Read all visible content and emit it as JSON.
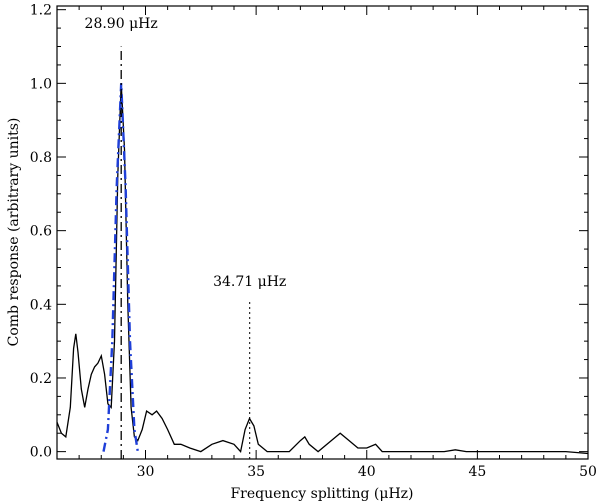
{
  "chart_data": {
    "type": "line",
    "title": "",
    "xlabel": "Frequency splitting (μHz)",
    "ylabel": "Comb response (arbitrary units)",
    "xlim": [
      26,
      50
    ],
    "ylim": [
      -0.02,
      1.21
    ],
    "xticks": [
      30,
      35,
      40,
      45,
      50
    ],
    "yticks": [
      0.0,
      0.2,
      0.4,
      0.6,
      0.8,
      1.0,
      1.2
    ],
    "ytick_labels": [
      "0.0",
      "0.2",
      "0.4",
      "0.6",
      "0.8",
      "1.0",
      "1.2"
    ],
    "grid": false,
    "legend": "none",
    "series": [
      {
        "style": "solid",
        "color": "#000000",
        "points": [
          [
            26.0,
            0.08
          ],
          [
            26.2,
            0.05
          ],
          [
            26.4,
            0.04
          ],
          [
            26.6,
            0.12
          ],
          [
            26.75,
            0.28
          ],
          [
            26.85,
            0.32
          ],
          [
            26.95,
            0.27
          ],
          [
            27.1,
            0.17
          ],
          [
            27.25,
            0.12
          ],
          [
            27.4,
            0.17
          ],
          [
            27.55,
            0.21
          ],
          [
            27.7,
            0.23
          ],
          [
            27.85,
            0.24
          ],
          [
            28.0,
            0.26
          ],
          [
            28.15,
            0.21
          ],
          [
            28.3,
            0.13
          ],
          [
            28.45,
            0.12
          ],
          [
            28.6,
            0.3
          ],
          [
            28.75,
            0.75
          ],
          [
            28.9,
            1.0
          ],
          [
            29.05,
            0.82
          ],
          [
            29.2,
            0.4
          ],
          [
            29.35,
            0.12
          ],
          [
            29.5,
            0.04
          ],
          [
            29.65,
            0.03
          ],
          [
            29.85,
            0.06
          ],
          [
            30.05,
            0.11
          ],
          [
            30.3,
            0.1
          ],
          [
            30.5,
            0.11
          ],
          [
            30.75,
            0.09
          ],
          [
            31.0,
            0.06
          ],
          [
            31.3,
            0.02
          ],
          [
            31.6,
            0.02
          ],
          [
            32.0,
            0.01
          ],
          [
            32.5,
            0.0
          ],
          [
            33.0,
            0.02
          ],
          [
            33.5,
            0.03
          ],
          [
            34.0,
            0.02
          ],
          [
            34.3,
            0.0
          ],
          [
            34.5,
            0.06
          ],
          [
            34.7,
            0.09
          ],
          [
            34.9,
            0.07
          ],
          [
            35.1,
            0.02
          ],
          [
            35.5,
            0.0
          ],
          [
            36.0,
            0.0
          ],
          [
            36.5,
            0.0
          ],
          [
            37.0,
            0.03
          ],
          [
            37.2,
            0.04
          ],
          [
            37.4,
            0.02
          ],
          [
            37.8,
            0.0
          ],
          [
            38.4,
            0.03
          ],
          [
            38.8,
            0.05
          ],
          [
            39.2,
            0.03
          ],
          [
            39.6,
            0.01
          ],
          [
            40.0,
            0.01
          ],
          [
            40.4,
            0.02
          ],
          [
            40.7,
            0.0
          ],
          [
            41.5,
            0.0
          ],
          [
            42.5,
            0.0
          ],
          [
            43.5,
            0.0
          ],
          [
            44.0,
            0.005
          ],
          [
            44.5,
            0.0
          ],
          [
            45.0,
            0.0
          ],
          [
            46.0,
            0.0
          ],
          [
            47.0,
            0.0
          ],
          [
            48.0,
            0.0
          ],
          [
            49.0,
            0.0
          ],
          [
            50.0,
            -0.005
          ]
        ]
      },
      {
        "style": "dash-dot",
        "color": "#1f3fd8",
        "points": [
          [
            28.1,
            0.0
          ],
          [
            28.3,
            0.06
          ],
          [
            28.5,
            0.3
          ],
          [
            28.7,
            0.72
          ],
          [
            28.9,
            1.0
          ],
          [
            29.1,
            0.72
          ],
          [
            29.3,
            0.3
          ],
          [
            29.5,
            0.06
          ],
          [
            29.65,
            0.0
          ]
        ]
      },
      {
        "style": "dash-dot",
        "color": "#000000",
        "points": [
          [
            28.9,
            -0.02
          ],
          [
            28.9,
            1.1
          ]
        ]
      },
      {
        "style": "dotted",
        "color": "#000000",
        "points": [
          [
            34.71,
            -0.02
          ],
          [
            34.71,
            0.41
          ]
        ]
      }
    ],
    "annotations": [
      {
        "text": "28.90 μHz",
        "x": 28.9,
        "y": 1.15
      },
      {
        "text": "34.71 μHz",
        "x": 34.71,
        "y": 0.45
      }
    ]
  }
}
